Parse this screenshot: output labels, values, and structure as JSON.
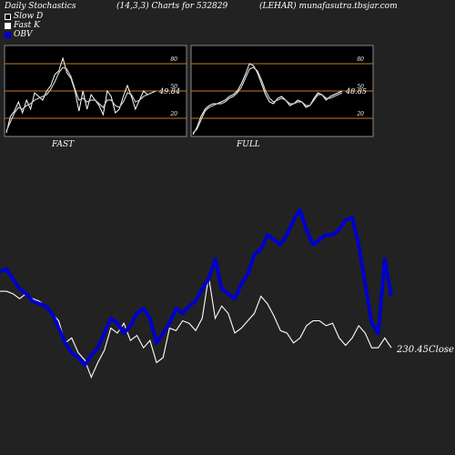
{
  "header": {
    "left": "Daily Stochastics",
    "mid": "(14,3,3) Charts for 532829",
    "right": "(LEHAR) munafasutra.tbsjar.com"
  },
  "legend": [
    {
      "label": "Slow  D",
      "color": "#000000"
    },
    {
      "label": "Fast K",
      "color": "#ffffff"
    },
    {
      "label": "OBV",
      "color": "#0000cc"
    }
  ],
  "colors": {
    "background": "#222222",
    "panel": "#000000",
    "band": "#c8782a",
    "obv": "#0000cc",
    "line": "#ffffff"
  },
  "chart_data": [
    {
      "type": "line",
      "panel_label": "FAST",
      "ylim": [
        0,
        100
      ],
      "yticks": [
        "80",
        "50",
        "20"
      ],
      "bands": [
        80,
        50,
        20
      ],
      "last_value_label": "49.84",
      "series": [
        {
          "name": "Fast K",
          "values": [
            4,
            22,
            28,
            38,
            26,
            40,
            30,
            48,
            44,
            40,
            50,
            56,
            68,
            72,
            86,
            70,
            64,
            50,
            28,
            50,
            30,
            46,
            40,
            34,
            24,
            50,
            44,
            26,
            30,
            44,
            56,
            44,
            30,
            40,
            50,
            46,
            48,
            50
          ]
        },
        {
          "name": "Slow  D",
          "values": [
            6,
            16,
            26,
            32,
            30,
            34,
            36,
            40,
            42,
            44,
            46,
            52,
            60,
            70,
            76,
            74,
            66,
            52,
            40,
            42,
            38,
            40,
            40,
            36,
            32,
            40,
            40,
            34,
            32,
            38,
            48,
            46,
            38,
            40,
            44,
            46,
            48,
            50
          ]
        }
      ]
    },
    {
      "type": "line",
      "panel_label": "FULL",
      "ylim": [
        0,
        100
      ],
      "yticks": [
        "80",
        "50",
        "20"
      ],
      "bands": [
        80,
        50,
        20
      ],
      "last_value_label": "48.85",
      "series": [
        {
          "name": "Fast K",
          "values": [
            2,
            10,
            22,
            30,
            34,
            36,
            36,
            38,
            40,
            44,
            46,
            50,
            58,
            68,
            80,
            78,
            70,
            58,
            46,
            38,
            36,
            42,
            44,
            40,
            34,
            36,
            40,
            38,
            32,
            34,
            42,
            48,
            46,
            40,
            44,
            46,
            48,
            50
          ]
        },
        {
          "name": "Slow  D",
          "values": [
            4,
            8,
            18,
            28,
            32,
            34,
            36,
            36,
            38,
            42,
            44,
            48,
            54,
            64,
            74,
            76,
            72,
            62,
            50,
            42,
            38,
            40,
            42,
            40,
            36,
            36,
            38,
            38,
            34,
            34,
            40,
            46,
            46,
            42,
            42,
            44,
            46,
            48
          ]
        }
      ]
    },
    {
      "type": "line",
      "ylim": [
        0,
        100
      ],
      "last_value_label": "230.45Close",
      "series": [
        {
          "name": "OBV",
          "values": [
            45,
            46,
            42,
            38,
            36,
            33,
            32,
            31,
            28,
            22,
            16,
            12,
            10,
            7,
            11,
            14,
            20,
            26,
            24,
            20,
            23,
            28,
            30,
            26,
            16,
            20,
            24,
            30,
            28,
            31,
            33,
            38,
            42,
            50,
            38,
            36,
            34,
            40,
            44,
            52,
            54,
            60,
            58,
            56,
            60,
            66,
            70,
            62,
            56,
            58,
            60,
            60,
            62,
            66,
            67,
            56,
            40,
            24,
            20,
            50,
            35
          ]
        },
        {
          "name": "Close",
          "values": [
            37,
            37,
            36,
            34,
            36,
            34,
            33,
            31,
            28,
            25,
            16,
            18,
            12,
            9,
            2,
            8,
            13,
            22,
            20,
            24,
            17,
            19,
            14,
            17,
            8,
            10,
            22,
            21,
            25,
            24,
            21,
            26,
            43,
            26,
            31,
            28,
            20,
            22,
            25,
            28,
            35,
            32,
            27,
            21,
            20,
            16,
            18,
            23,
            25,
            25,
            23,
            24,
            18,
            15,
            18,
            23,
            20,
            14,
            14,
            18,
            14
          ]
        }
      ]
    }
  ]
}
